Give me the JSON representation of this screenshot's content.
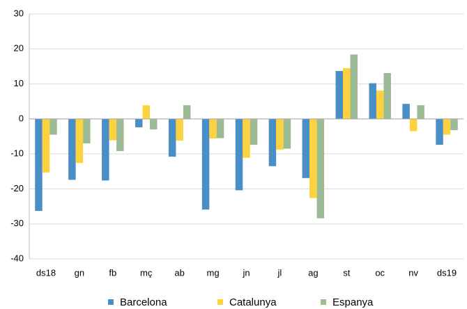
{
  "chart_data": {
    "type": "bar",
    "categories": [
      "ds18",
      "gn",
      "fb",
      "mç",
      "ab",
      "mg",
      "jn",
      "jl",
      "ag",
      "st",
      "oc",
      "nv",
      "ds19"
    ],
    "series": [
      {
        "name": "Barcelona",
        "color": "#4a8ec6",
        "values": [
          -26.3,
          -17.4,
          -17.6,
          -2.4,
          -10.8,
          -25.9,
          -20.4,
          -13.5,
          -16.9,
          13.7,
          10.2,
          4.3,
          -7.4
        ]
      },
      {
        "name": "Catalunya",
        "color": "#fdd23e",
        "values": [
          -15.3,
          -12.6,
          -6.1,
          3.9,
          -6.2,
          -5.6,
          -11.1,
          -8.8,
          -22.6,
          14.5,
          8.1,
          -3.5,
          -4.5
        ]
      },
      {
        "name": "Espanya",
        "color": "#9bbb94",
        "values": [
          -4.5,
          -7,
          -9.2,
          -3,
          3.9,
          -5.5,
          -7.4,
          -8.5,
          -28.4,
          18.4,
          13.1,
          3.9,
          -3.2
        ]
      }
    ],
    "ylim": [
      -40,
      30
    ],
    "yticks": [
      -40,
      -30,
      -20,
      -10,
      0,
      10,
      20,
      30
    ],
    "grid": true,
    "legend": "bottom"
  }
}
